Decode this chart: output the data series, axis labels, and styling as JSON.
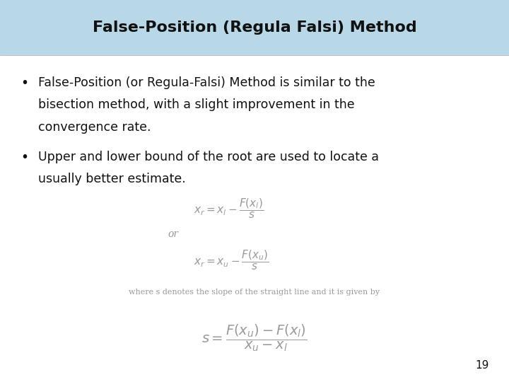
{
  "title": "False-Position (Regula Falsi) Method",
  "title_bg_color": "#b8d8e8",
  "bg_color": "#ffffff",
  "title_fontsize": 16,
  "bullet1_line1": "False-Position (or Regula-Falsi) Method is similar to the",
  "bullet1_line2": "bisection method, with a slight improvement in the",
  "bullet1_line3": "convergence rate.",
  "bullet2_line1": "Upper and lower bound of the root are used to locate a",
  "bullet2_line2": "usually better estimate.",
  "formula1": "$x_r = x_l - F(x_l)\\!\\left/\\vphantom{F}\\right.\\!_s$",
  "formula2": "$x_r = x_u - F(x_u)\\!\\left/\\vphantom{F}\\right.\\!_s$",
  "or_text": "or",
  "where_text": "where s denotes the slope of the straight line and it is given by",
  "formula3": "$s = \\dfrac{F(x_u) - F(x_l)}{x_u - x_l}$",
  "page_number": "19",
  "text_color": "#111111",
  "formula_color": "#999999",
  "bullet_fontsize": 12.5,
  "formula_fontsize": 11,
  "small_text_fontsize": 8,
  "large_formula_fontsize": 14
}
